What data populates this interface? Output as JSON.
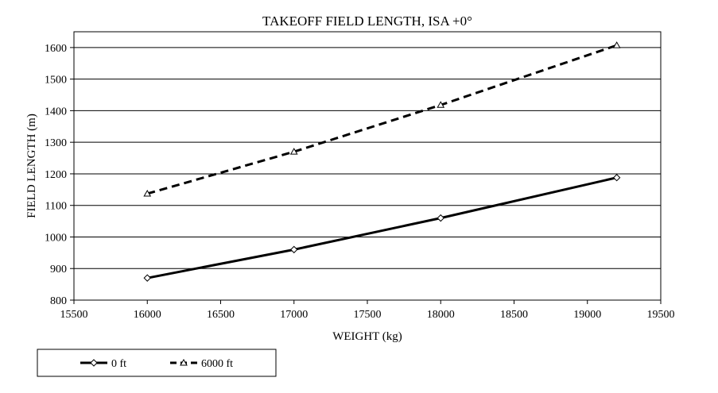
{
  "chart_data": {
    "type": "line",
    "title": "TAKEOFF FIELD LENGTH, ISA +0°",
    "xlabel": "WEIGHT (kg)",
    "ylabel": "FIELD LENGTH (m)",
    "xlim": [
      15500,
      19500
    ],
    "ylim": [
      800,
      1650
    ],
    "xticks": [
      15500,
      16000,
      16500,
      17000,
      17500,
      18000,
      18500,
      19000,
      19500
    ],
    "yticks": [
      800,
      900,
      1000,
      1100,
      1200,
      1300,
      1400,
      1500,
      1600
    ],
    "grid": "horizontal",
    "legend_position": "bottom-left",
    "series": [
      {
        "name": "0 ft",
        "style": "solid",
        "marker": "diamond",
        "color": "#000000",
        "x": [
          16000,
          17000,
          18000,
          19200
        ],
        "y": [
          870,
          960,
          1060,
          1188
        ]
      },
      {
        "name": "6000 ft",
        "style": "dashed",
        "marker": "triangle",
        "color": "#000000",
        "x": [
          16000,
          17000,
          18000,
          19200
        ],
        "y": [
          1137,
          1270,
          1418,
          1607
        ]
      }
    ]
  }
}
